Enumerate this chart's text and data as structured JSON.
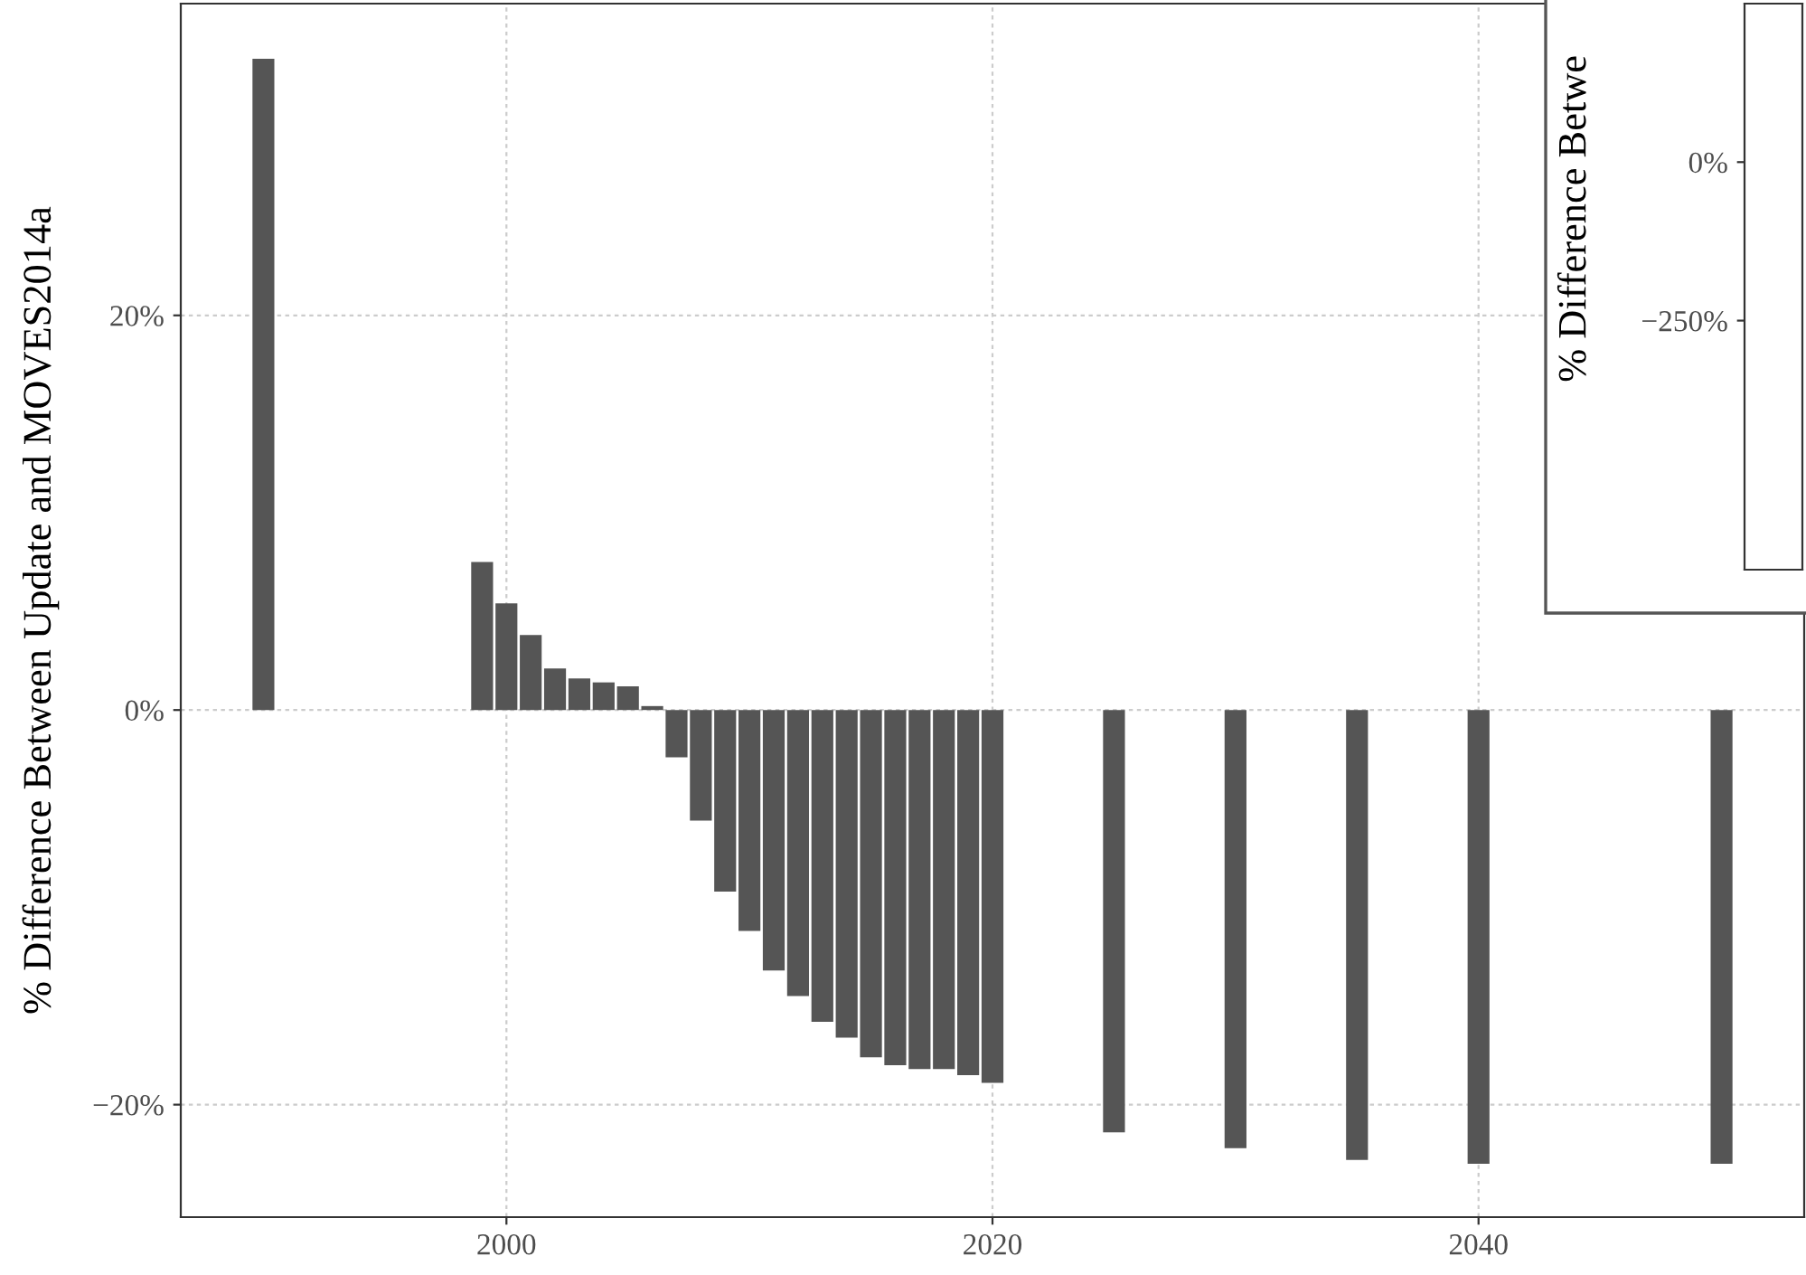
{
  "chart_data": [
    {
      "type": "bar",
      "ylabel": "% Difference Between Update and MOVES2014a",
      "color": "#555555",
      "x": [
        1990,
        1999,
        2000,
        2001,
        2002,
        2003,
        2004,
        2005,
        2006,
        2007,
        2008,
        2009,
        2010,
        2011,
        2012,
        2013,
        2014,
        2015,
        2016,
        2017,
        2018,
        2019,
        2020,
        2025,
        2030,
        2035,
        2040,
        2050
      ],
      "values": [
        33.0,
        7.5,
        5.4,
        3.8,
        2.1,
        1.6,
        1.4,
        1.2,
        0.2,
        -2.4,
        -5.6,
        -9.2,
        -11.2,
        -13.2,
        -14.5,
        -15.8,
        -16.6,
        -17.6,
        -18.0,
        -18.2,
        -18.2,
        -18.5,
        -18.9,
        -21.4,
        -22.2,
        -22.8,
        -23.0,
        -23.0
      ],
      "xlim": [
        1986.6,
        2053.4
      ],
      "xticks": [
        2000,
        2020,
        2040
      ],
      "ylim": [
        -25.7,
        35.8
      ],
      "yticks": [
        {
          "value": -20,
          "label": "−20%"
        },
        {
          "value": 0,
          "label": "0%"
        },
        {
          "value": 20,
          "label": "20%"
        }
      ],
      "grid": true
    },
    {
      "type": "other",
      "ylabel": "% Difference Betwe",
      "annotations": [
        "0%",
        "−250%"
      ]
    }
  ]
}
